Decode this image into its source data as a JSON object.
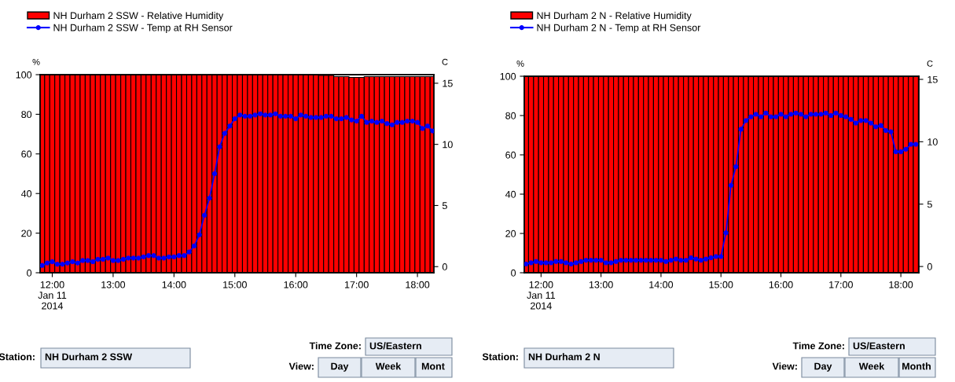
{
  "chart_data": [
    {
      "type": "bar",
      "ylabel": "%",
      "y2label": "C",
      "legend": "top left",
      "marker": "circle",
      "grid": false,
      "x": [
        11.833,
        11.917,
        12,
        12.083,
        12.167,
        12.25,
        12.333,
        12.417,
        12.5,
        12.583,
        12.667,
        12.75,
        12.833,
        12.917,
        13,
        13.083,
        13.167,
        13.25,
        13.333,
        13.417,
        13.5,
        13.583,
        13.667,
        13.75,
        13.833,
        13.917,
        14,
        14.083,
        14.167,
        14.25,
        14.333,
        14.417,
        14.5,
        14.583,
        14.667,
        14.75,
        14.833,
        14.917,
        15,
        15.083,
        15.167,
        15.25,
        15.333,
        15.417,
        15.5,
        15.583,
        15.667,
        15.75,
        15.833,
        15.917,
        16,
        16.083,
        16.167,
        16.25,
        16.333,
        16.417,
        16.5,
        16.583,
        16.667,
        16.75,
        16.833,
        16.917,
        17,
        17.083,
        17.167,
        17.25,
        17.333,
        17.417,
        17.5,
        17.583,
        17.667,
        17.75,
        17.833,
        17.917,
        18,
        18.083,
        18.167,
        18.25
      ],
      "series": [
        {
          "name": "NH Durham 2 SSW - Relative Humidity",
          "color": "#ff0000",
          "values": [
            100,
            100,
            100,
            100,
            100,
            100,
            100,
            100,
            100,
            100,
            100,
            100,
            100,
            100,
            100,
            100,
            100,
            100,
            100,
            100,
            100,
            100,
            100,
            100,
            100,
            100,
            100,
            100,
            100,
            100,
            100,
            100,
            100,
            100,
            100,
            100,
            100,
            100,
            100,
            100,
            100,
            100,
            100,
            100,
            100,
            100,
            100,
            100,
            100,
            100,
            100,
            100,
            100,
            100,
            100,
            99.6,
            99.6,
            99.6,
            99,
            99,
            99,
            98.6,
            98.6,
            98.6,
            99,
            99,
            99,
            99,
            99,
            99,
            99,
            99,
            99,
            99,
            99,
            99,
            99,
            99
          ]
        },
        {
          "name": "NH Durham 2 SSW - Temp at RH Sensor",
          "type": "line",
          "axis": "y2",
          "color": "#0000ff",
          "values": [
            0.1,
            0.3,
            0.4,
            0.2,
            0.2,
            0.3,
            0.4,
            0.3,
            0.5,
            0.5,
            0.4,
            0.6,
            0.6,
            0.7,
            0.5,
            0.5,
            0.6,
            0.7,
            0.7,
            0.7,
            0.8,
            0.9,
            0.9,
            0.7,
            0.7,
            0.8,
            0.8,
            0.9,
            0.9,
            1.2,
            1.7,
            2.6,
            4.2,
            5.6,
            7.6,
            9.8,
            10.9,
            11.5,
            12.1,
            12.4,
            12.3,
            12.3,
            12.4,
            12.5,
            12.4,
            12.4,
            12.5,
            12.3,
            12.3,
            12.3,
            12.1,
            12.4,
            12.3,
            12.2,
            12.2,
            12.2,
            12.3,
            12.3,
            12.1,
            12.1,
            12.2,
            12.0,
            11.9,
            12.3,
            11.8,
            11.9,
            11.8,
            11.9,
            11.7,
            11.6,
            11.8,
            11.8,
            11.9,
            11.9,
            11.8,
            11.3,
            11.5,
            11.1
          ]
        }
      ],
      "xlim": [
        11.8,
        18.27
      ],
      "xticks": [
        {
          "value": 12,
          "label": "12:00\nJan 11\n2014"
        },
        {
          "value": 13,
          "label": "13:00"
        },
        {
          "value": 14,
          "label": "14:00"
        },
        {
          "value": 15,
          "label": "15:00"
        },
        {
          "value": 16,
          "label": "16:00"
        },
        {
          "value": 17,
          "label": "17:00"
        },
        {
          "value": 18,
          "label": "18:00"
        }
      ],
      "ylim": [
        0,
        100
      ],
      "yticks": [
        0,
        20,
        40,
        60,
        80,
        100
      ],
      "y2lim": [
        -0.5,
        15.7
      ],
      "y2ticks": [
        0,
        5,
        10,
        15
      ],
      "annotations": [
        "Station:",
        "NH Durham 2 SSW",
        "Time Zone:",
        "US/Eastern",
        "View:",
        "Day",
        "Week",
        "Mont"
      ]
    },
    {
      "type": "bar",
      "ylabel": "%",
      "y2label": "C",
      "legend": "top left",
      "marker": "circle",
      "grid": false,
      "x": [
        11.75,
        11.833,
        11.917,
        12,
        12.083,
        12.167,
        12.25,
        12.333,
        12.417,
        12.5,
        12.583,
        12.667,
        12.75,
        12.833,
        12.917,
        13,
        13.083,
        13.167,
        13.25,
        13.333,
        13.417,
        13.5,
        13.583,
        13.667,
        13.75,
        13.833,
        13.917,
        14,
        14.083,
        14.167,
        14.25,
        14.333,
        14.417,
        14.5,
        14.583,
        14.667,
        14.75,
        14.833,
        14.917,
        15,
        15.083,
        15.167,
        15.25,
        15.333,
        15.417,
        15.5,
        15.583,
        15.667,
        15.75,
        15.833,
        15.917,
        16,
        16.083,
        16.167,
        16.25,
        16.333,
        16.417,
        16.5,
        16.583,
        16.667,
        16.75,
        16.833,
        16.917,
        17,
        17.083,
        17.167,
        17.25,
        17.333,
        17.417,
        17.5,
        17.583,
        17.667,
        17.75,
        17.833,
        17.917,
        18,
        18.083,
        18.167,
        18.25
      ],
      "series": [
        {
          "name": "NH Durham 2 N - Relative Humidity",
          "color": "#ff0000",
          "values": [
            100,
            100,
            100,
            100,
            100,
            100,
            100,
            100,
            100,
            100,
            100,
            100,
            100,
            100,
            100,
            100,
            100,
            100,
            100,
            100,
            100,
            100,
            100,
            100,
            100,
            100,
            100,
            100,
            100,
            100,
            100,
            100,
            100,
            100,
            100,
            100,
            100,
            100,
            100,
            100,
            100,
            100,
            100,
            100,
            100,
            100,
            100,
            100,
            100,
            100,
            100,
            100,
            100,
            100,
            100,
            100,
            100,
            100,
            100,
            100,
            100,
            100,
            100,
            100,
            100,
            100,
            100,
            100,
            100,
            100,
            100,
            100,
            100,
            100,
            100,
            100,
            100,
            100,
            100
          ]
        },
        {
          "name": "NH Durham 2 N - Temp at RH Sensor",
          "type": "line",
          "axis": "y2",
          "color": "#0000ff",
          "values": [
            0.2,
            0.3,
            0.4,
            0.3,
            0.3,
            0.3,
            0.4,
            0.4,
            0.3,
            0.2,
            0.3,
            0.4,
            0.5,
            0.5,
            0.5,
            0.5,
            0.3,
            0.3,
            0.4,
            0.5,
            0.5,
            0.5,
            0.5,
            0.5,
            0.5,
            0.5,
            0.5,
            0.5,
            0.4,
            0.5,
            0.6,
            0.5,
            0.5,
            0.7,
            0.6,
            0.5,
            0.6,
            0.7,
            0.8,
            0.8,
            2.7,
            6.5,
            8.0,
            11.0,
            11.7,
            12.0,
            12.2,
            12.0,
            12.3,
            12.0,
            12.0,
            12.2,
            12.0,
            12.2,
            12.3,
            12.2,
            12.0,
            12.2,
            12.2,
            12.2,
            12.3,
            12.1,
            12.3,
            12.1,
            12.0,
            11.8,
            11.5,
            11.7,
            11.7,
            11.5,
            11.2,
            11.3,
            10.9,
            10.8,
            9.2,
            9.2,
            9.4,
            9.8,
            9.8
          ]
        }
      ],
      "xlim": [
        11.72,
        18.3
      ],
      "xticks": [
        {
          "value": 12,
          "label": "12:00\nJan 11\n2014"
        },
        {
          "value": 13,
          "label": "13:00"
        },
        {
          "value": 14,
          "label": "14:00"
        },
        {
          "value": 15,
          "label": "15:00"
        },
        {
          "value": 16,
          "label": "16:00"
        },
        {
          "value": 17,
          "label": "17:00"
        },
        {
          "value": 18,
          "label": "18:00"
        }
      ],
      "ylim": [
        0,
        100
      ],
      "yticks": [
        0,
        20,
        40,
        60,
        80,
        100
      ],
      "y2lim": [
        -0.5,
        15.25
      ],
      "y2ticks": [
        0,
        5,
        10,
        15
      ],
      "annotations": [
        "Station:",
        "NH Durham 2 N",
        "Time Zone:",
        "US/Eastern",
        "View:",
        "Day",
        "Week",
        "Month"
      ]
    }
  ]
}
